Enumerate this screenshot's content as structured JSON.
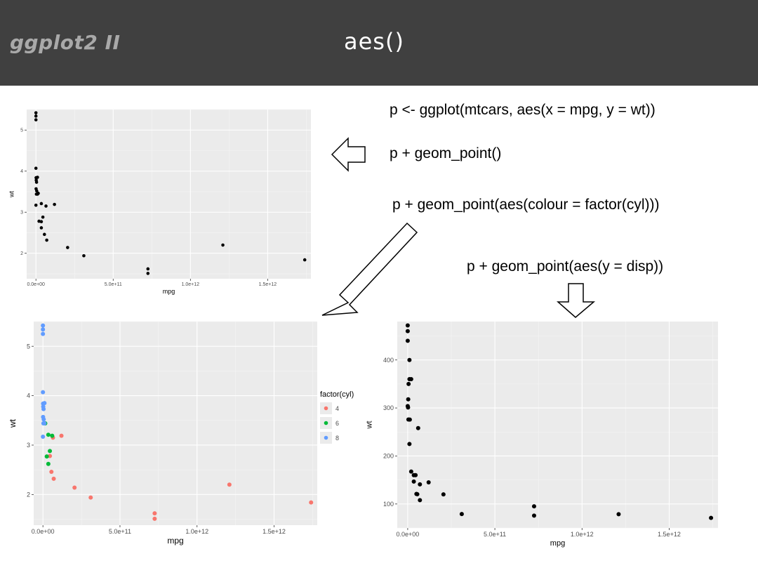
{
  "header": {
    "brand": "ggplot2 II",
    "title": "aes()"
  },
  "code": {
    "line1": "p <- ggplot(mtcars, aes(x = mpg, y = wt))",
    "line2": "p + geom_point()",
    "line3": "p + geom_point(aes(colour = factor(cyl)))",
    "line4": "p + geom_point(aes(y = disp))"
  },
  "chart_data": [
    {
      "type": "scatter",
      "xlabel": "mpg",
      "ylabel": "wt",
      "xlim": [
        -60000000000.0,
        1780000000000.0
      ],
      "ylim": [
        1.38,
        5.5
      ],
      "xticks": [
        0,
        500000000000.0,
        1000000000000.0,
        1500000000000.0
      ],
      "xtick_labels": [
        "0.0e+00",
        "5.0e+11",
        "1.0e+12",
        "1.5e+12"
      ],
      "yticks": [
        2,
        3,
        4,
        5
      ],
      "ytick_labels": [
        "2",
        "3",
        "4",
        "5"
      ],
      "grid": true,
      "colors": {
        "point": "#000000"
      },
      "points": [
        [
          0,
          5.42
        ],
        [
          0,
          5.34
        ],
        [
          0,
          5.25
        ],
        [
          0,
          4.07
        ],
        [
          1000000000.0,
          3.84
        ],
        [
          10000000000.0,
          3.85
        ],
        [
          2000000000.0,
          3.78
        ],
        [
          4000000000.0,
          3.73
        ],
        [
          1000000000.0,
          3.57
        ],
        [
          5000000000.0,
          3.52
        ],
        [
          10000000000.0,
          3.44
        ],
        [
          15000000000.0,
          3.46
        ],
        [
          3000000000.0,
          3.44
        ],
        [
          0,
          3.17
        ],
        [
          35000000000.0,
          3.21
        ],
        [
          65000000000.0,
          3.15
        ],
        [
          120000000000.0,
          3.19
        ],
        [
          20000000000.0,
          2.78
        ],
        [
          35000000000.0,
          2.77
        ],
        [
          45000000000.0,
          2.88
        ],
        [
          35000000000.0,
          2.62
        ],
        [
          55000000000.0,
          2.46
        ],
        [
          70000000000.0,
          2.32
        ],
        [
          205000000000.0,
          2.14
        ],
        [
          310000000000.0,
          1.94
        ],
        [
          725000000000.0,
          1.62
        ],
        [
          725000000000.0,
          1.51
        ],
        [
          1210000000000.0,
          2.2
        ],
        [
          1740000000000.0,
          1.84
        ]
      ]
    },
    {
      "type": "scatter",
      "xlabel": "mpg",
      "ylabel": "wt",
      "xlim": [
        -60000000000.0,
        1780000000000.0
      ],
      "ylim": [
        1.38,
        5.5
      ],
      "xticks": [
        0,
        500000000000.0,
        1000000000000.0,
        1500000000000.0
      ],
      "xtick_labels": [
        "0.0e+00",
        "5.0e+11",
        "1.0e+12",
        "1.5e+12"
      ],
      "yticks": [
        2,
        3,
        4,
        5
      ],
      "ytick_labels": [
        "2",
        "3",
        "4",
        "5"
      ],
      "grid": true,
      "legend": {
        "title": "factor(cyl)",
        "placement": "right",
        "entries": [
          {
            "label": "4",
            "color": "#f8766d"
          },
          {
            "label": "6",
            "color": "#00ba38"
          },
          {
            "label": "8",
            "color": "#619cff"
          }
        ]
      },
      "series": [
        {
          "name": "4",
          "points": [
            [
              65000000000.0,
              3.15
            ],
            [
              120000000000.0,
              3.19
            ],
            [
              45000000000.0,
              2.78
            ],
            [
              55000000000.0,
              2.46
            ],
            [
              70000000000.0,
              2.32
            ],
            [
              205000000000.0,
              2.14
            ],
            [
              310000000000.0,
              1.94
            ],
            [
              725000000000.0,
              1.62
            ],
            [
              725000000000.0,
              1.51
            ],
            [
              1210000000000.0,
              2.2
            ],
            [
              1740000000000.0,
              1.84
            ]
          ]
        },
        {
          "name": "6",
          "points": [
            [
              15000000000.0,
              3.44
            ],
            [
              35000000000.0,
              3.21
            ],
            [
              60000000000.0,
              3.19
            ],
            [
              45000000000.0,
              2.88
            ],
            [
              25000000000.0,
              2.77
            ],
            [
              35000000000.0,
              2.62
            ]
          ]
        },
        {
          "name": "8",
          "points": [
            [
              0,
              5.42
            ],
            [
              0,
              5.34
            ],
            [
              0,
              5.25
            ],
            [
              0,
              4.07
            ],
            [
              1000000000.0,
              3.84
            ],
            [
              10000000000.0,
              3.85
            ],
            [
              2000000000.0,
              3.78
            ],
            [
              4000000000.0,
              3.73
            ],
            [
              1000000000.0,
              3.57
            ],
            [
              5000000000.0,
              3.52
            ],
            [
              10000000000.0,
              3.44
            ],
            [
              3000000000.0,
              3.44
            ],
            [
              0,
              3.17
            ]
          ]
        }
      ]
    },
    {
      "type": "scatter",
      "xlabel": "mpg",
      "ylabel": "wt",
      "xlim": [
        -60000000000.0,
        1780000000000.0
      ],
      "ylim": [
        50,
        480
      ],
      "xticks": [
        0,
        500000000000.0,
        1000000000000.0,
        1500000000000.0
      ],
      "xtick_labels": [
        "0.0e+00",
        "5.0e+11",
        "1.0e+12",
        "1.5e+12"
      ],
      "yticks": [
        100,
        200,
        300,
        400
      ],
      "ytick_labels": [
        "100",
        "200",
        "300",
        "400"
      ],
      "grid": true,
      "colors": {
        "point": "#000000"
      },
      "points": [
        [
          0,
          472
        ],
        [
          0,
          460
        ],
        [
          0,
          440
        ],
        [
          10000000000.0,
          400
        ],
        [
          10000000000.0,
          360
        ],
        [
          20000000000.0,
          360
        ],
        [
          5000000000.0,
          350
        ],
        [
          3000000000.0,
          318
        ],
        [
          0,
          304
        ],
        [
          2000000000.0,
          301
        ],
        [
          4000000000.0,
          276
        ],
        [
          12000000000.0,
          275.8
        ],
        [
          10000000000.0,
          225
        ],
        [
          20000000000.0,
          167.6
        ],
        [
          35000000000.0,
          160
        ],
        [
          45000000000.0,
          160
        ],
        [
          60000000000.0,
          258
        ],
        [
          35000000000.0,
          146.7
        ],
        [
          120000000000.0,
          145
        ],
        [
          70000000000.0,
          140.8
        ],
        [
          55000000000.0,
          120.3
        ],
        [
          50000000000.0,
          121
        ],
        [
          205000000000.0,
          120.1
        ],
        [
          70000000000.0,
          108
        ],
        [
          310000000000.0,
          79
        ],
        [
          725000000000.0,
          95.1
        ],
        [
          725000000000.0,
          75.7
        ],
        [
          1210000000000.0,
          78.7
        ],
        [
          1740000000000.0,
          71.1
        ]
      ]
    }
  ]
}
